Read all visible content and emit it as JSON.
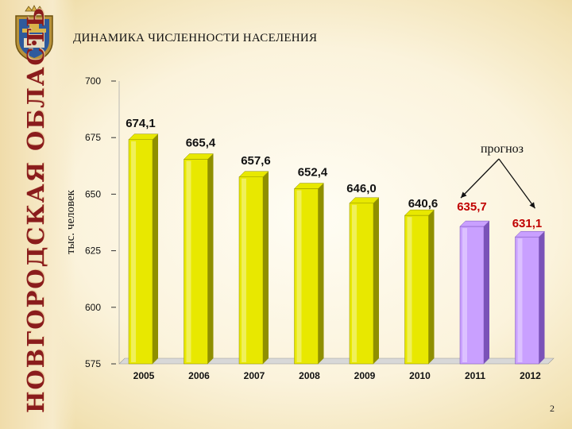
{
  "header": {
    "region_title": "НОВГОРОДСКАЯ ОБЛАСТЬ",
    "slide_title": "ДИНАМИКА ЧИСЛЕННОСТИ НАСЕЛЕНИЯ",
    "page_number": "2"
  },
  "chart_data": {
    "type": "bar",
    "title": "ДИНАМИКА ЧИСЛЕННОСТИ НАСЕЛЕНИЯ",
    "xlabel": "",
    "ylabel": "тыс. человек",
    "ylim": [
      575,
      700
    ],
    "yticks": [
      575,
      600,
      625,
      650,
      675,
      700
    ],
    "categories": [
      "2005",
      "2006",
      "2007",
      "2008",
      "2009",
      "2010",
      "2011",
      "2012"
    ],
    "values": [
      674.1,
      665.4,
      657.6,
      652.4,
      646.0,
      640.6,
      635.7,
      631.1
    ],
    "value_labels": [
      "674,1",
      "665,4",
      "657,6",
      "652,4",
      "646,0",
      "640,6",
      "635,7",
      "631,1"
    ],
    "forecast_flags": [
      false,
      false,
      false,
      false,
      false,
      false,
      true,
      true
    ],
    "annotation": "прогноз",
    "colors": {
      "actual": "#e8e800",
      "actual_dark": "#8f8f00",
      "forecast": "#c9a0ff",
      "forecast_dark": "#7a52b8",
      "forecast_label": "#c00000",
      "actual_label": "#111111"
    },
    "grid": false,
    "legend": "none"
  }
}
